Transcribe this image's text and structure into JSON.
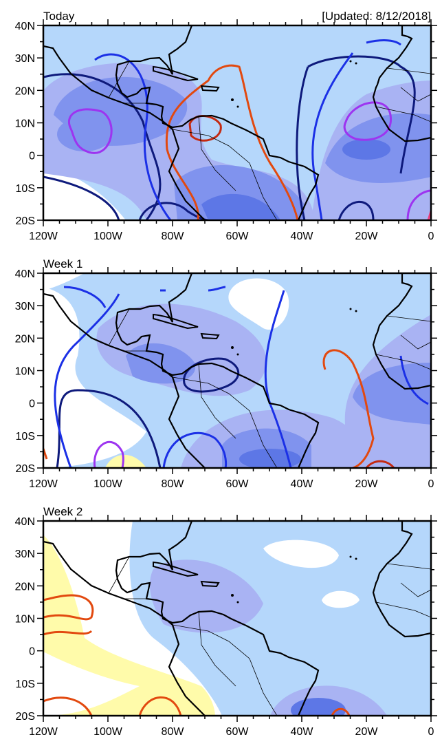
{
  "updated": "[Updated: 8/12/2018]",
  "panels": [
    {
      "title": "Today"
    },
    {
      "title": "Week 1"
    },
    {
      "title": "Week 2"
    }
  ],
  "lon_labels": [
    "120W",
    "100W",
    "80W",
    "60W",
    "40W",
    "20W",
    "0"
  ],
  "lat_labels": [
    "40N",
    "30N",
    "20N",
    "10N",
    "0",
    "10S",
    "20S"
  ],
  "extent": {
    "lon": [
      -120,
      0
    ],
    "lat": [
      -20,
      40
    ]
  },
  "colors": {
    "light_blue": "#b5d7fb",
    "lavender": "#a9b3f3",
    "mid_blue": "#8093ee",
    "dark_blue": "#5d77e6",
    "deep_blue": "#4463e0",
    "yellow": "#fffbaa",
    "navy": "#0e1a7c",
    "blue": "#1b30e6",
    "purple": "#9d34f0",
    "orange": "#e2490f",
    "red": "#c42a12"
  }
}
